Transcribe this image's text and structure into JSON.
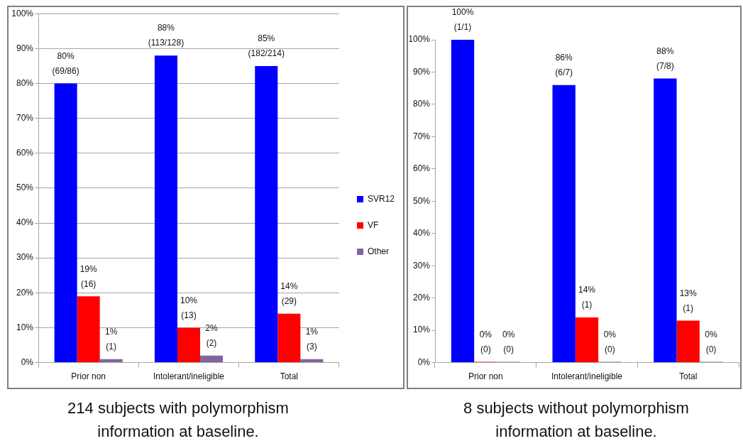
{
  "chart_data": [
    {
      "type": "bar",
      "title": "214 subjects with polymorphism information at baseline.",
      "categories": [
        "Prior non",
        "Intolerant/ineligible",
        "Total"
      ],
      "series": [
        {
          "name": "SVR12",
          "color": "#0000ff",
          "values": [
            80,
            88,
            85
          ],
          "value_labels": [
            "80%\n(69/86)",
            "88%\n(113/128)",
            "85%\n(182/214)"
          ]
        },
        {
          "name": "VF",
          "color": "#ff0000",
          "values": [
            19,
            10,
            14
          ],
          "value_labels": [
            "19%\n(16)",
            "10%\n(13)",
            "14%\n(29)"
          ]
        },
        {
          "name": "Other",
          "color": "#8064a2",
          "values": [
            1,
            2,
            1
          ],
          "value_labels": [
            "1%\n(1)",
            "2%\n(2)",
            "1%\n(3)"
          ]
        }
      ],
      "ylim": [
        0,
        100
      ],
      "yticks": [
        {
          "value": 0,
          "label": "0%"
        },
        {
          "value": 10,
          "label": "10%"
        },
        {
          "value": 20,
          "label": "20%"
        },
        {
          "value": 30,
          "label": "30%"
        },
        {
          "value": 40,
          "label": "40%"
        },
        {
          "value": 50,
          "label": "50%"
        },
        {
          "value": 60,
          "label": "60%"
        },
        {
          "value": 70,
          "label": "70%"
        },
        {
          "value": 80,
          "label": "80%"
        },
        {
          "value": 90,
          "label": "90%"
        },
        {
          "value": 100,
          "label": "100%"
        }
      ],
      "grid": "y",
      "legend": "right"
    },
    {
      "type": "bar",
      "title": "8 subjects without polymorphism information at baseline.",
      "categories": [
        "Prior non",
        "Intolerant/ineligible",
        "Total"
      ],
      "series": [
        {
          "color": "#0000ff",
          "values": [
            100,
            86,
            88
          ],
          "value_labels": [
            "100%\n(1/1)",
            "86%\n(6/7)",
            "88%\n(7/8)"
          ]
        },
        {
          "color": "#ff0000",
          "values": [
            0,
            14,
            13
          ],
          "value_labels": [
            "0%\n(0)",
            "14%\n(1)",
            "13%\n(1)"
          ]
        },
        {
          "color": "#8064a2",
          "values": [
            0,
            0,
            0
          ],
          "value_labels": [
            "0%\n(0)",
            "0%\n(0)",
            "0%\n(0)"
          ]
        }
      ],
      "ylim": [
        0,
        100
      ],
      "yticks": [
        {
          "value": 0,
          "label": "0%"
        },
        {
          "value": 10,
          "label": "10%"
        },
        {
          "value": 20,
          "label": "20%"
        },
        {
          "value": 30,
          "label": "30%"
        },
        {
          "value": 40,
          "label": "40%"
        },
        {
          "value": 50,
          "label": "50%"
        },
        {
          "value": 60,
          "label": "60%"
        },
        {
          "value": 70,
          "label": "70%"
        },
        {
          "value": 80,
          "label": "80%"
        },
        {
          "value": 90,
          "label": "90%"
        },
        {
          "value": 100,
          "label": "100%"
        }
      ],
      "grid": false
    }
  ]
}
